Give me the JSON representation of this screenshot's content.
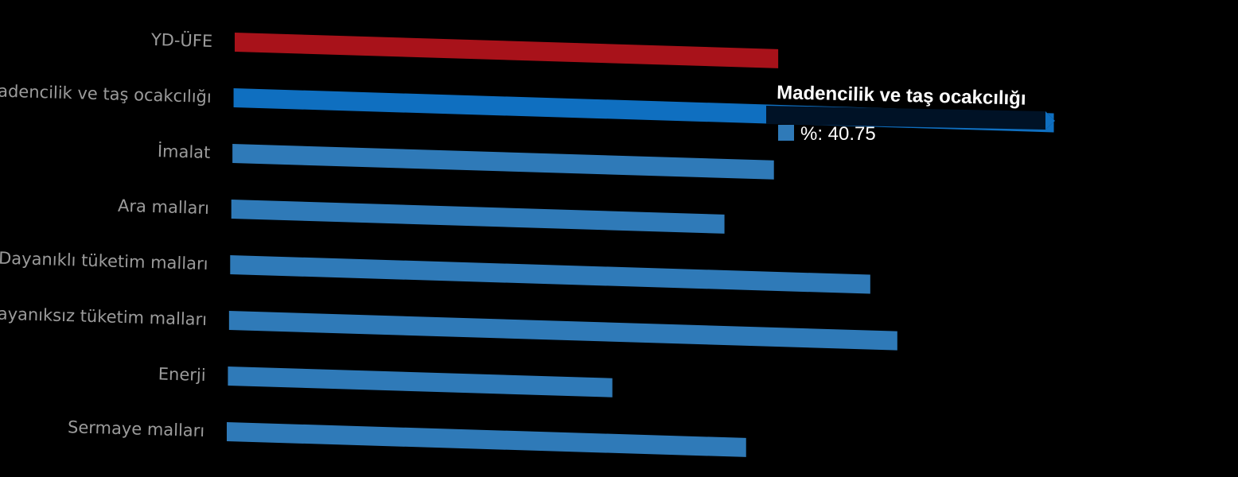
{
  "chart_data": {
    "type": "bar",
    "orientation": "horizontal",
    "categories": [
      "YD-ÜFE",
      "Madencilik ve taş ocakcılığı",
      "İmalat",
      "Ara malları",
      "Dayanıklı tüketim malları",
      "Dayanıksız tüketim malları",
      "Enerji",
      "Sermaye malları"
    ],
    "series": [
      {
        "name": "%",
        "values": [
          27.0,
          40.75,
          26.9,
          24.5,
          31.8,
          33.2,
          19.1,
          25.8
        ],
        "colors": [
          "#a8121a",
          "#0f6fc0",
          "#2f7ab8",
          "#2f7ab8",
          "#2f7ab8",
          "#2f7ab8",
          "#2f7ab8",
          "#2f7ab8"
        ]
      }
    ],
    "xlim": [
      0,
      42
    ],
    "grid": false,
    "legend": "none",
    "tooltip": {
      "title": "Madencilik ve taş ocakcılığı",
      "series_label": "%",
      "value": "40.75",
      "text": "%: 40.75",
      "swatch_color": "#2f7ab8",
      "background": "#001226"
    }
  }
}
